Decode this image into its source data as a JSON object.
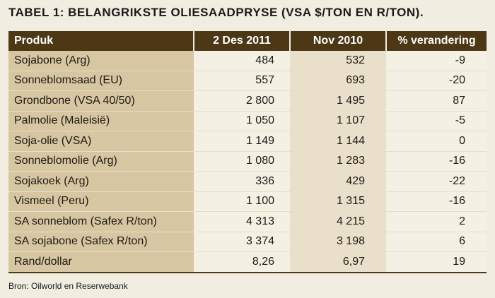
{
  "title": "TABEL 1: BELANGRIKSTE OLIESAADPRYSE (VSA $/TON EN R/TON).",
  "headers": [
    "Produk",
    "2 Des 2011",
    "Nov 2010",
    "% verandering"
  ],
  "rows": [
    [
      "Sojabone (Arg)",
      "484",
      "532",
      "-9"
    ],
    [
      "Sonneblomsaad (EU)",
      "557",
      "693",
      "-20"
    ],
    [
      "Grondbone (VSA 40/50)",
      "2 800",
      "1 495",
      "87"
    ],
    [
      "Palmolie (Maleisië)",
      "1 050",
      "1 107",
      "-5"
    ],
    [
      "Soja-olie (VSA)",
      "1 149",
      "1 144",
      "0"
    ],
    [
      "Sonneblomolie (Arg)",
      "1 080",
      "1 283",
      "-16"
    ],
    [
      "Sojakoek (Arg)",
      "336",
      "429",
      "-22"
    ],
    [
      "Vismeel (Peru)",
      "1 100",
      "1 315",
      "-16"
    ],
    [
      "SA sonneblom (Safex R/ton)",
      "4 313",
      "4 215",
      "2"
    ],
    [
      "SA sojabone (Safex R/ton)",
      "3 374",
      "3 198",
      "6"
    ],
    [
      "Rand/dollar",
      "8,26",
      "6,97",
      "19"
    ]
  ],
  "source": "Bron: Oilworld en Reserwebank",
  "colors": {
    "header_bg": "#4d3816",
    "first_col_bg": "#d7c6a2",
    "page_bg": "#f2ede1"
  }
}
